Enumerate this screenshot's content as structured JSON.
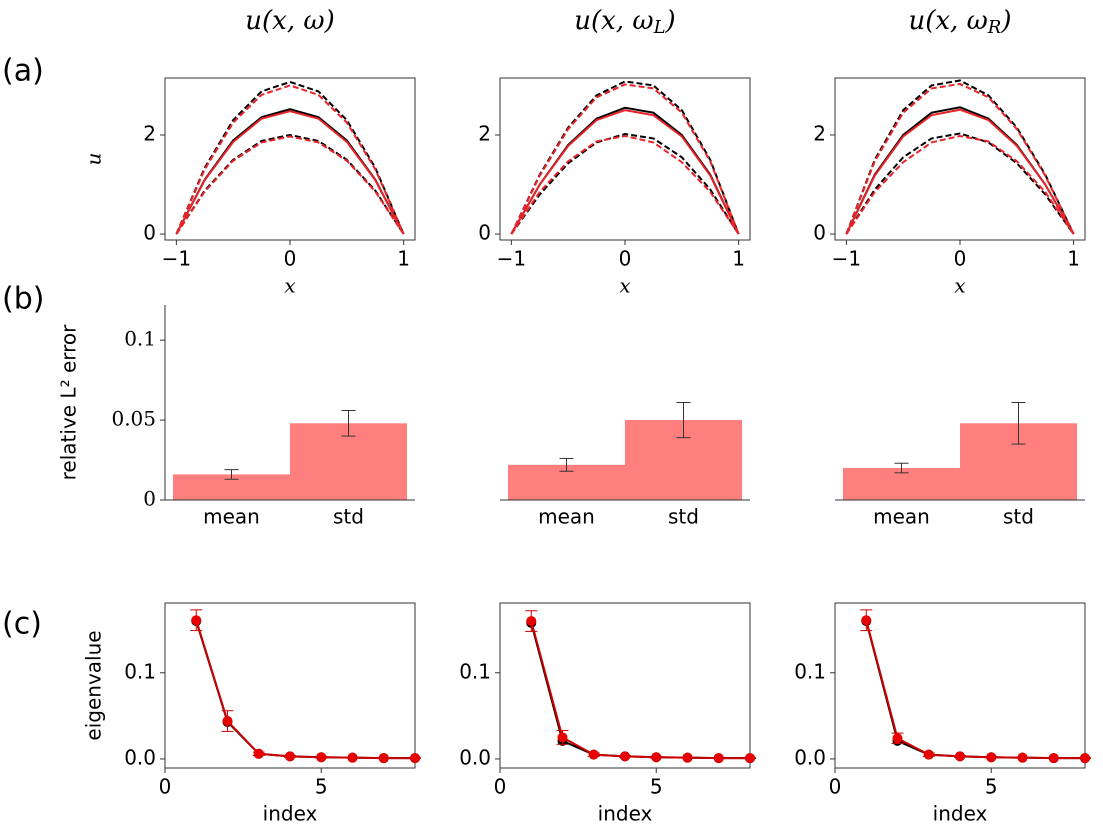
{
  "panel_labels": [
    "(a)",
    "(b)",
    "(c)"
  ],
  "chart_data": [
    {
      "type": "line",
      "title": "u(x, ω)",
      "xlabel": "x",
      "ylabel": "u",
      "x": [
        -1,
        -0.75,
        -0.5,
        -0.25,
        0,
        0.25,
        0.5,
        0.75,
        1
      ],
      "xlim": [
        -1.1,
        1.1
      ],
      "ylim": [
        -0.12,
        3.15
      ],
      "xticks": [
        {
          "value": -1,
          "label": "−1"
        },
        0,
        1
      ],
      "yticks": [
        0,
        2
      ],
      "series": [
        {
          "color": "#000000",
          "dash": true,
          "values": [
            0,
            1.34,
            2.3,
            2.88,
            3.07,
            2.88,
            2.3,
            1.34,
            0
          ]
        },
        {
          "color": "#000000",
          "dash": true,
          "values": [
            0,
            0.88,
            1.5,
            1.88,
            2.0,
            1.88,
            1.5,
            0.88,
            0
          ]
        },
        {
          "color": "#000000",
          "dash": false,
          "values": [
            0,
            1.1,
            1.89,
            2.36,
            2.52,
            2.36,
            1.89,
            1.1,
            0
          ]
        },
        {
          "color": "#e8242a",
          "dash": true,
          "values": [
            0,
            1.31,
            2.25,
            2.81,
            3.0,
            2.81,
            2.25,
            1.31,
            0
          ]
        },
        {
          "color": "#e8242a",
          "dash": true,
          "values": [
            0,
            0.86,
            1.48,
            1.85,
            1.97,
            1.85,
            1.48,
            0.86,
            0
          ]
        },
        {
          "color": "#e8242a",
          "dash": false,
          "values": [
            0,
            1.09,
            1.86,
            2.33,
            2.48,
            2.33,
            1.86,
            1.09,
            0
          ]
        }
      ]
    },
    {
      "type": "line",
      "title": "u(x, ω",
      "title_sub": "L",
      "title_end": ")",
      "xlabel": "x",
      "x": [
        -1,
        -0.75,
        -0.5,
        -0.25,
        0,
        0.25,
        0.5,
        0.75,
        1
      ],
      "xlim": [
        -1.1,
        1.1
      ],
      "ylim": [
        -0.12,
        3.15
      ],
      "xticks": [
        {
          "value": -1,
          "label": "−1"
        },
        0,
        1
      ],
      "yticks": [
        0,
        2
      ],
      "series": [
        {
          "color": "#000000",
          "dash": true,
          "values": [
            0,
            1.2,
            2.15,
            2.8,
            3.08,
            3.0,
            2.5,
            1.5,
            0
          ]
        },
        {
          "color": "#000000",
          "dash": true,
          "values": [
            0,
            0.8,
            1.43,
            1.85,
            2.02,
            1.93,
            1.55,
            0.9,
            0
          ]
        },
        {
          "color": "#000000",
          "dash": false,
          "values": [
            0,
            1.0,
            1.8,
            2.33,
            2.55,
            2.45,
            2.0,
            1.2,
            0
          ]
        },
        {
          "color": "#e8242a",
          "dash": true,
          "values": [
            0,
            1.18,
            2.12,
            2.76,
            3.02,
            2.94,
            2.45,
            1.47,
            0
          ]
        },
        {
          "color": "#e8242a",
          "dash": true,
          "values": [
            0,
            0.85,
            1.47,
            1.87,
            1.98,
            1.85,
            1.45,
            0.85,
            0
          ]
        },
        {
          "color": "#e8242a",
          "dash": false,
          "values": [
            0,
            1.0,
            1.78,
            2.3,
            2.5,
            2.4,
            1.97,
            1.18,
            0
          ]
        }
      ]
    },
    {
      "type": "line",
      "title": "u(x, ω",
      "title_sub": "R",
      "title_end": ")",
      "xlabel": "x",
      "x": [
        -1,
        -0.75,
        -0.5,
        -0.25,
        0,
        0.25,
        0.5,
        0.75,
        1
      ],
      "xlim": [
        -1.1,
        1.1
      ],
      "ylim": [
        -0.12,
        3.15
      ],
      "xticks": [
        {
          "value": -1,
          "label": "−1"
        },
        0,
        1
      ],
      "yticks": [
        0,
        2
      ],
      "series": [
        {
          "color": "#000000",
          "dash": true,
          "values": [
            0,
            1.5,
            2.5,
            3.0,
            3.1,
            2.8,
            2.15,
            1.2,
            0
          ]
        },
        {
          "color": "#000000",
          "dash": true,
          "values": [
            0,
            0.9,
            1.55,
            1.93,
            2.03,
            1.85,
            1.43,
            0.8,
            0
          ]
        },
        {
          "color": "#000000",
          "dash": false,
          "values": [
            0,
            1.2,
            2.0,
            2.45,
            2.56,
            2.33,
            1.8,
            1.0,
            0
          ]
        },
        {
          "color": "#e8242a",
          "dash": true,
          "values": [
            0,
            1.47,
            2.45,
            2.94,
            3.03,
            2.76,
            2.12,
            1.18,
            0
          ]
        },
        {
          "color": "#e8242a",
          "dash": true,
          "values": [
            0,
            0.85,
            1.45,
            1.85,
            1.98,
            1.87,
            1.47,
            0.85,
            0
          ]
        },
        {
          "color": "#e8242a",
          "dash": false,
          "values": [
            0,
            1.18,
            1.97,
            2.4,
            2.51,
            2.3,
            1.78,
            1.0,
            0
          ]
        }
      ]
    },
    {
      "type": "bar",
      "ylabel": "relative L² error",
      "categories": [
        "mean",
        "std"
      ],
      "values": [
        0.016,
        0.048
      ],
      "errors": [
        0.003,
        0.008
      ],
      "color": "#ff7f7f",
      "ylim": [
        0,
        0.122
      ],
      "yticks": [
        0,
        0.05,
        0.1
      ]
    },
    {
      "type": "bar",
      "categories": [
        "mean",
        "std"
      ],
      "values": [
        0.022,
        0.05
      ],
      "errors": [
        0.004,
        0.011
      ],
      "color": "#ff7f7f",
      "ylim": [
        0,
        0.122
      ]
    },
    {
      "type": "bar",
      "categories": [
        "mean",
        "std"
      ],
      "values": [
        0.02,
        0.048
      ],
      "errors": [
        0.003,
        0.013
      ],
      "color": "#ff7f7f",
      "ylim": [
        0,
        0.122
      ]
    },
    {
      "type": "line",
      "xlabel": "index",
      "ylabel": "eigenvalue",
      "markers": true,
      "x": [
        1,
        2,
        3,
        4,
        5,
        6,
        7,
        8
      ],
      "xlim": [
        0,
        8
      ],
      "ylim": [
        -0.0105,
        0.181
      ],
      "xticks": [
        0,
        5
      ],
      "yticks": [
        {
          "value": 0,
          "label": "0.0"
        },
        0.1
      ],
      "series": [
        {
          "color": "#000000",
          "dash": false,
          "values": [
            0.16,
            0.043,
            0.006,
            0.003,
            0.002,
            0.0015,
            0.001,
            0.001
          ]
        },
        {
          "color": "#cc0000",
          "dash": false,
          "values": [
            0.161,
            0.044,
            0.006,
            0.003,
            0.002,
            0.0015,
            0.001,
            0.001
          ],
          "errors": [
            0.012,
            0.012,
            0.002,
            0.001,
            0.001,
            0.0005,
            0.0005,
            0.0005
          ]
        }
      ]
    },
    {
      "type": "line",
      "xlabel": "index",
      "markers": true,
      "x": [
        1,
        2,
        3,
        4,
        5,
        6,
        7,
        8
      ],
      "xlim": [
        0,
        8
      ],
      "ylim": [
        -0.0105,
        0.181
      ],
      "xticks": [
        0,
        5
      ],
      "yticks": [
        {
          "value": 0,
          "label": "0.0"
        },
        0.1
      ],
      "series": [
        {
          "color": "#000000",
          "dash": false,
          "values": [
            0.158,
            0.021,
            0.005,
            0.003,
            0.002,
            0.0015,
            0.001,
            0.001
          ]
        },
        {
          "color": "#cc0000",
          "dash": false,
          "values": [
            0.16,
            0.025,
            0.005,
            0.003,
            0.002,
            0.0015,
            0.001,
            0.001
          ],
          "errors": [
            0.012,
            0.008,
            0.002,
            0.001,
            0.001,
            0.0005,
            0.0005,
            0.0005
          ]
        }
      ]
    },
    {
      "type": "line",
      "xlabel": "index",
      "markers": true,
      "x": [
        1,
        2,
        3,
        4,
        5,
        6,
        7,
        8
      ],
      "xlim": [
        0,
        8
      ],
      "ylim": [
        -0.0105,
        0.181
      ],
      "xticks": [
        0,
        5
      ],
      "yticks": [
        {
          "value": 0,
          "label": "0.0"
        },
        0.1
      ],
      "series": [
        {
          "color": "#000000",
          "dash": false,
          "values": [
            0.16,
            0.021,
            0.005,
            0.003,
            0.002,
            0.0015,
            0.001,
            0.001
          ]
        },
        {
          "color": "#cc0000",
          "dash": false,
          "values": [
            0.161,
            0.024,
            0.005,
            0.003,
            0.002,
            0.0015,
            0.001,
            0.001
          ],
          "errors": [
            0.012,
            0.006,
            0.002,
            0.001,
            0.001,
            0.0005,
            0.0005,
            0.0005
          ]
        }
      ]
    }
  ]
}
